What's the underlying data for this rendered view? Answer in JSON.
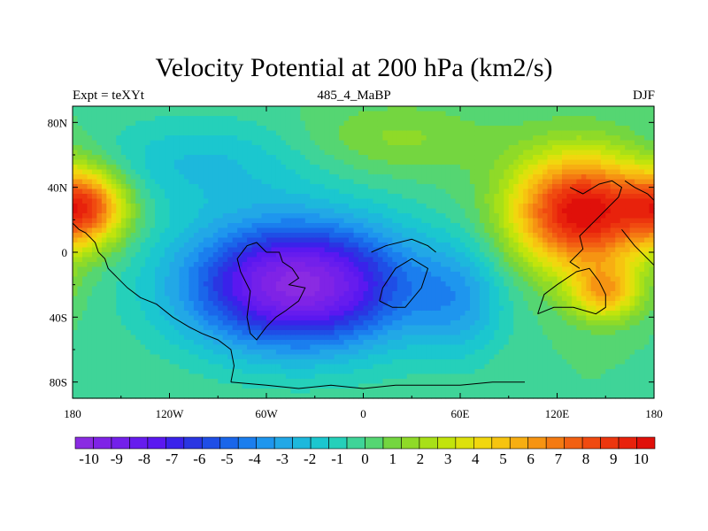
{
  "chart_data": {
    "type": "heatmap",
    "title": "Velocity Potential at 200 hPa (km2/s)",
    "subtitle_left": "Expt = teXYt",
    "subtitle_center": "485_4_MaBP",
    "subtitle_right": "DJF",
    "x_ticks": [
      "180",
      "120W",
      "60W",
      "0",
      "60E",
      "120E",
      "180"
    ],
    "y_ticks": [
      "80N",
      "40N",
      "0",
      "40S",
      "80S"
    ],
    "x_tick_values": [
      -180,
      -120,
      -60,
      0,
      60,
      120,
      180
    ],
    "y_tick_values": [
      80,
      40,
      0,
      -40,
      -80
    ],
    "xlim": [
      -180,
      180
    ],
    "ylim": [
      -90,
      90
    ],
    "colorbar": {
      "labels": [
        "-10",
        "-9",
        "-8",
        "-7",
        "-6",
        "-5",
        "-4",
        "-3",
        "-2",
        "-1",
        "0",
        "1",
        "2",
        "3",
        "4",
        "5",
        "6",
        "7",
        "8",
        "9",
        "10"
      ],
      "min": -10.5,
      "max": 10.5,
      "colors": [
        "#8a2be2",
        "#7f23e6",
        "#7320ea",
        "#661cee",
        "#5a18f0",
        "#3a22ea",
        "#2a36e2",
        "#1f4ee6",
        "#1a66ea",
        "#1b7eee",
        "#1e96ee",
        "#22a8e6",
        "#1db8dc",
        "#1bc7cf",
        "#25d0ba",
        "#3fd498",
        "#55d672",
        "#74d640",
        "#8fda28",
        "#a8e018",
        "#c2e40c",
        "#dde10c",
        "#f1d70e",
        "#f6c410",
        "#f7ae12",
        "#f69412",
        "#f47a12",
        "#f26012",
        "#f04a10",
        "#ec360e",
        "#e8220c",
        "#e0100a"
      ]
    },
    "field_centers": [
      {
        "lon": 135,
        "lat": 25,
        "amp": 10.5,
        "slon": 30,
        "slat": 25
      },
      {
        "lon": -172,
        "lat": 28,
        "amp": 7.5,
        "slon": 18,
        "slat": 16
      },
      {
        "lon": -40,
        "lat": -20,
        "amp": -10.2,
        "slon": 50,
        "slat": 28
      },
      {
        "lon": 150,
        "lat": -25,
        "amp": 5.0,
        "slon": 15,
        "slat": 12
      },
      {
        "lon": 60,
        "lat": -30,
        "amp": -2.5,
        "slon": 20,
        "slat": 25
      },
      {
        "lon": -100,
        "lat": 55,
        "amp": -2.0,
        "slon": 50,
        "slat": 20
      },
      {
        "lon": 20,
        "lat": 70,
        "amp": 1.5,
        "slon": 40,
        "slat": 15
      }
    ]
  },
  "colors": {
    "axis": "#000000",
    "background": "#ffffff"
  }
}
